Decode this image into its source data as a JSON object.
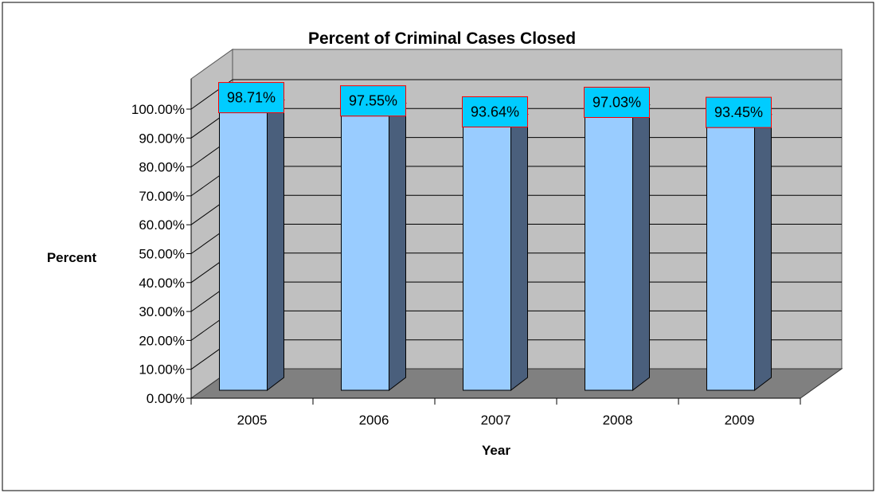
{
  "chart_data": {
    "type": "bar",
    "title": "Percent of Criminal Cases Closed",
    "xlabel": "Year",
    "ylabel": "Percent",
    "categories": [
      "2005",
      "2006",
      "2007",
      "2008",
      "2009"
    ],
    "values": [
      98.71,
      97.55,
      93.64,
      97.03,
      93.45
    ],
    "data_labels": [
      "98.71%",
      "97.55%",
      "93.64%",
      "97.03%",
      "93.45%"
    ],
    "ylim": [
      0,
      100
    ],
    "ytick_labels": [
      "0.00%",
      "10.00%",
      "20.00%",
      "30.00%",
      "40.00%",
      "50.00%",
      "60.00%",
      "70.00%",
      "80.00%",
      "90.00%",
      "100.00%"
    ],
    "grid": true,
    "legend": "none",
    "style": "3d-column",
    "colors": {
      "bar_front": "#99ccff",
      "bar_side": "#4a5f7c",
      "wall": "#c0c0c0",
      "floor": "#808080",
      "label_bg": "#00ccff",
      "label_border": "#ff0000"
    }
  }
}
